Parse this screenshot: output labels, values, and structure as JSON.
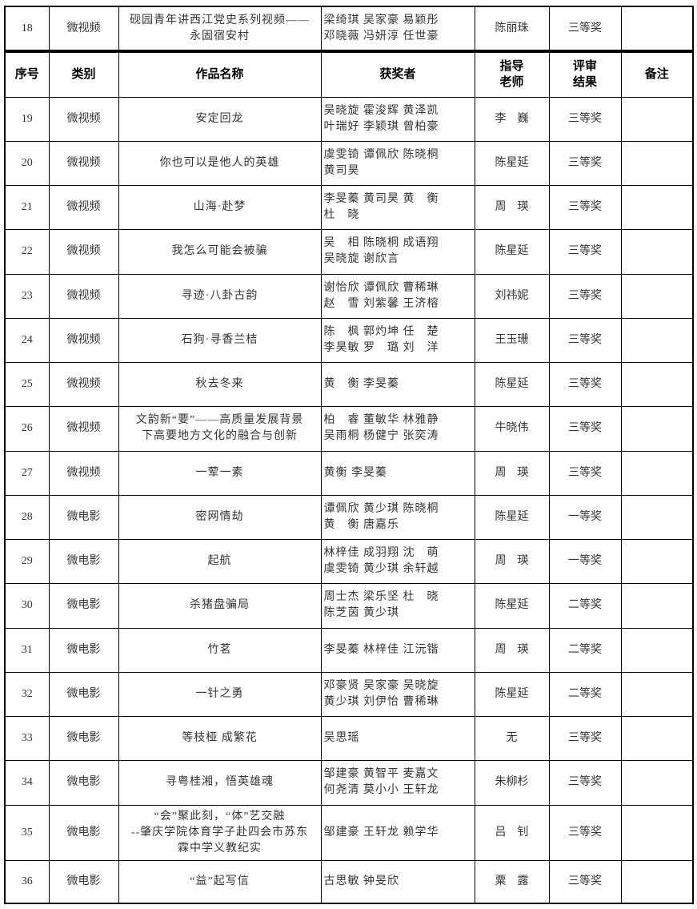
{
  "headers": {
    "no": "序号",
    "category": "类别",
    "title": "作品名称",
    "winners": "获奖者",
    "advisor": "指导\n老师",
    "result": "评审\n结果",
    "remarks": "备注"
  },
  "rows": [
    {
      "no": "18",
      "category": "微视频",
      "title": "砚园青年讲西江党史系列视频——\n永固宿安村",
      "winners": "梁绮琪 吴家豪 易颖彤\n邓晓薇 冯妍淳 任世豪",
      "advisor": "陈丽珠",
      "result": "三等奖",
      "remarks": ""
    },
    {
      "no": "19",
      "category": "微视频",
      "title": "安定回龙",
      "winners": "吴晓旋 霍浚辉 黄泽凯\n叶瑞好 李颖琪 曾柏豪",
      "advisor": "李　巍",
      "result": "三等奖",
      "remarks": ""
    },
    {
      "no": "20",
      "category": "微视频",
      "title": "你也可以是他人的英雄",
      "winners": "虞雯锜 谭佩欣 陈晓桐\n黄司昊",
      "advisor": "陈星延",
      "result": "三等奖",
      "remarks": ""
    },
    {
      "no": "21",
      "category": "微视频",
      "title": "山海·赴梦",
      "winners": "李旻蓁 黄司昊 黄　衡\n杜　晓",
      "advisor": "周　瑛",
      "result": "三等奖",
      "remarks": ""
    },
    {
      "no": "22",
      "category": "微视频",
      "title": "我怎么可能会被骗",
      "winners": "吴　相 陈晓桐 成语翔\n吴晓旋 谢欣言",
      "advisor": "陈星延",
      "result": "三等奖",
      "remarks": ""
    },
    {
      "no": "23",
      "category": "微视频",
      "title": "寻迹·八卦古韵",
      "winners": "谢怡欣 谭佩欣 曹稀琳\n赵　雪 刘紫馨 王济榕",
      "advisor": "刘祎妮",
      "result": "三等奖",
      "remarks": ""
    },
    {
      "no": "24",
      "category": "微视频",
      "title": "石狗·寻香兰桔",
      "winners": "陈　枫 郭灼坤 任　楚\n李昊敏 罗　璐 刘　洋",
      "advisor": "王玉珊",
      "result": "三等奖",
      "remarks": ""
    },
    {
      "no": "25",
      "category": "微视频",
      "title": "秋去冬来",
      "winners": "黄　衡 李旻蓁",
      "advisor": "陈星延",
      "result": "三等奖",
      "remarks": ""
    },
    {
      "no": "26",
      "category": "微视频",
      "title": "文韵新“要”——高质量发展背景\n下高要地方文化的融合与创新",
      "winners": "柏　睿 董敏华 林雅静\n吴雨桐 杨健宁 张奕涛",
      "advisor": "牛晓伟",
      "result": "三等奖",
      "remarks": ""
    },
    {
      "no": "27",
      "category": "微视频",
      "title": "一荤一素",
      "winners": "黄衡 李旻蓁",
      "advisor": "周　瑛",
      "result": "三等奖",
      "remarks": ""
    },
    {
      "no": "28",
      "category": "微电影",
      "title": "密网情劫",
      "winners": "谭佩欣 黄少琪 陈晓桐\n黄　衡 唐嘉乐",
      "advisor": "陈星延",
      "result": "一等奖",
      "remarks": ""
    },
    {
      "no": "29",
      "category": "微电影",
      "title": "起航",
      "winners": "林梓佳 成羽翔 沈　萌\n虞雯锜 黄少琪 余轩越",
      "advisor": "周　瑛",
      "result": "一等奖",
      "remarks": ""
    },
    {
      "no": "30",
      "category": "微电影",
      "title": "杀猪盘骗局",
      "winners": "周士杰 梁乐坚 杜　晓\n陈芝茵 黄少琪",
      "advisor": "陈星延",
      "result": "二等奖",
      "remarks": ""
    },
    {
      "no": "31",
      "category": "微电影",
      "title": "竹茗",
      "winners": "李旻蓁 林梓佳 江沅锴",
      "advisor": "周　瑛",
      "result": "二等奖",
      "remarks": ""
    },
    {
      "no": "32",
      "category": "微电影",
      "title": "一针之勇",
      "winners": "邓豪贤 吴家豪 吴晓旋\n黄少琪 刘伊怡 曹稀琳",
      "advisor": "陈星延",
      "result": "二等奖",
      "remarks": ""
    },
    {
      "no": "33",
      "category": "微电影",
      "title": "等枝桠 成繁花",
      "winners": "吴思瑶",
      "advisor": "无",
      "result": "三等奖",
      "remarks": ""
    },
    {
      "no": "34",
      "category": "微电影",
      "title": "寻粤桂湘，悟英雄魂",
      "winners": "邹建豪 黄智平 麦嘉文\n何尧清 莫小小 王轩龙",
      "advisor": "朱柳杉",
      "result": "三等奖",
      "remarks": ""
    },
    {
      "no": "35",
      "category": "微电影",
      "title": "“会”聚此刻，“体”艺交融\n--肇庆学院体育学子赴四会市苏东\n霖中学义教纪实",
      "winners": "邹建豪 王轩龙 赖学华",
      "advisor": "吕　钊",
      "result": "三等奖",
      "remarks": ""
    },
    {
      "no": "36",
      "category": "微电影",
      "title": "“益”起写信",
      "winners": "古思敏 钟旻欣",
      "advisor": "粟　露",
      "result": "三等奖",
      "remarks": ""
    }
  ]
}
